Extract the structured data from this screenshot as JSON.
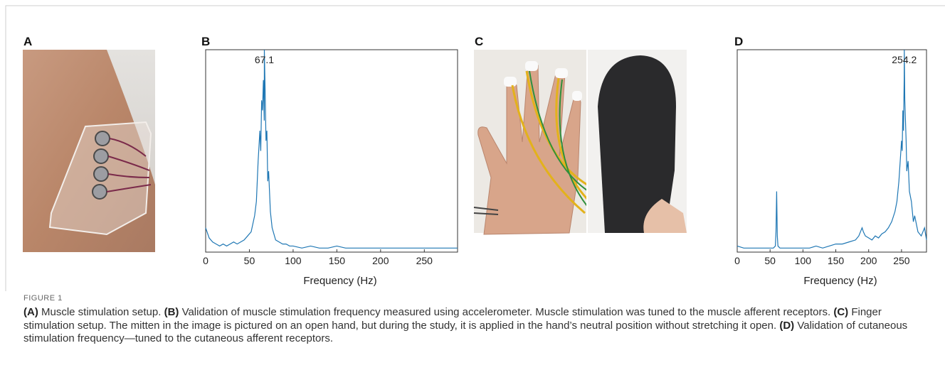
{
  "panels": [
    "A",
    "B",
    "C",
    "D"
  ],
  "chart_data": [
    {
      "type": "line",
      "xlabel": "Frequency (Hz)",
      "color": "#1f77b4",
      "xlim": [
        0,
        288
      ],
      "ylim": [
        0,
        1
      ],
      "xticks": [
        0,
        50,
        100,
        150,
        200,
        250
      ],
      "peak": 67.1,
      "x": [
        0,
        4,
        8,
        12,
        16,
        20,
        24,
        28,
        32,
        36,
        40,
        44,
        48,
        52,
        56,
        58,
        60,
        62,
        63,
        64,
        65,
        66,
        67,
        67.1,
        68,
        69,
        70,
        71,
        72,
        74,
        76,
        80,
        84,
        88,
        92,
        96,
        100,
        110,
        120,
        130,
        140,
        150,
        160,
        170,
        180,
        190,
        200,
        210,
        220,
        230,
        240,
        250,
        260,
        270,
        280,
        288
      ],
      "values": [
        0.12,
        0.07,
        0.05,
        0.04,
        0.03,
        0.04,
        0.03,
        0.04,
        0.05,
        0.04,
        0.05,
        0.06,
        0.08,
        0.1,
        0.18,
        0.25,
        0.45,
        0.6,
        0.5,
        0.75,
        0.7,
        0.85,
        0.65,
        1,
        0.8,
        0.55,
        0.6,
        0.35,
        0.4,
        0.2,
        0.12,
        0.06,
        0.05,
        0.04,
        0.04,
        0.03,
        0.03,
        0.02,
        0.03,
        0.02,
        0.02,
        0.03,
        0.02,
        0.02,
        0.02,
        0.02,
        0.02,
        0.02,
        0.02,
        0.02,
        0.02,
        0.02,
        0.02,
        0.02,
        0.02,
        0.02
      ]
    },
    {
      "type": "line",
      "xlabel": "Frequency (Hz)",
      "color": "#1f77b4",
      "xlim": [
        0,
        288
      ],
      "ylim": [
        0,
        1
      ],
      "xticks": [
        0,
        50,
        100,
        150,
        200,
        250
      ],
      "peak": 254.2,
      "x": [
        0,
        10,
        20,
        30,
        40,
        50,
        55,
        58,
        59,
        60,
        61,
        62,
        65,
        70,
        80,
        90,
        100,
        110,
        120,
        130,
        140,
        150,
        160,
        170,
        180,
        185,
        190,
        192,
        195,
        200,
        205,
        210,
        215,
        220,
        225,
        230,
        235,
        240,
        243,
        246,
        248,
        250,
        251,
        252,
        253,
        254,
        254.2,
        255,
        256,
        257,
        258,
        260,
        262,
        265,
        268,
        270,
        275,
        280,
        285,
        288
      ],
      "values": [
        0.03,
        0.02,
        0.02,
        0.02,
        0.02,
        0.02,
        0.02,
        0.03,
        0.1,
        0.3,
        0.08,
        0.03,
        0.02,
        0.02,
        0.02,
        0.02,
        0.02,
        0.02,
        0.03,
        0.02,
        0.03,
        0.04,
        0.04,
        0.05,
        0.06,
        0.08,
        0.12,
        0.1,
        0.08,
        0.07,
        0.06,
        0.08,
        0.07,
        0.09,
        0.1,
        0.12,
        0.15,
        0.2,
        0.25,
        0.35,
        0.45,
        0.55,
        0.5,
        0.7,
        0.6,
        0.85,
        1,
        0.75,
        0.65,
        0.55,
        0.4,
        0.45,
        0.3,
        0.25,
        0.15,
        0.18,
        0.1,
        0.08,
        0.12,
        0.06
      ]
    }
  ],
  "caption": {
    "label": "FIGURE 1",
    "parts": [
      {
        "tag": "(A)",
        "text": "Muscle stimulation setup."
      },
      {
        "tag": "(B)",
        "text": "Validation of muscle stimulation frequency measured using accelerometer. Muscle stimulation was tuned to the muscle afferent receptors."
      },
      {
        "tag": "(C)",
        "text": "Finger stimulation setup. The mitten in the image is pictured on an open hand, but during the study, it is applied in the hand’s neutral position without stretching it open."
      },
      {
        "tag": "(D)",
        "text": "Validation of cutaneous stimulation frequency—tuned to the cutaneous afferent receptors."
      }
    ]
  }
}
